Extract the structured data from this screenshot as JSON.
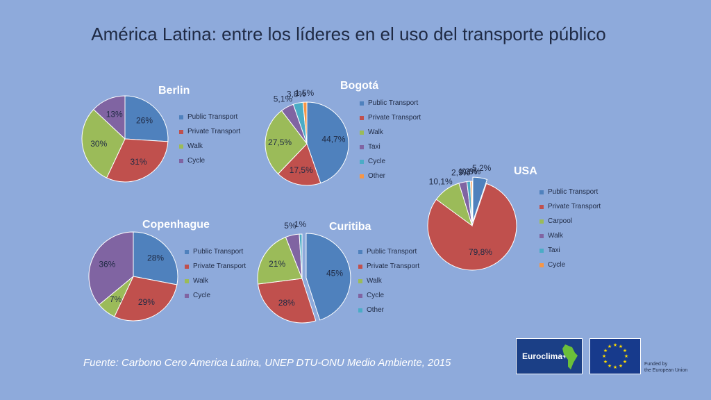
{
  "slide": {
    "title": "América Latina: entre los líderes en el uso del transporte público",
    "source": "Fuente: Carbono Cero America Latina, UNEP DTU-ONU Medio Ambiente, 2015",
    "logos": {
      "euroclima": "Euroclima+",
      "funded_line1": "Funded by",
      "funded_line2": "the European Union"
    }
  },
  "colors": {
    "blue": "#4f81bd",
    "red": "#c0504d",
    "green": "#9bbb59",
    "purple": "#8064a2",
    "cyan": "#4bacc6",
    "orange": "#f79646"
  },
  "chart_data": [
    {
      "type": "pie",
      "title": "Berlin",
      "categories": [
        "Public Transport",
        "Private Transport",
        "Walk",
        "Cycle"
      ],
      "values": [
        26,
        31,
        30,
        13
      ],
      "labels": [
        "26%",
        "31%",
        "30%",
        "13%"
      ],
      "legend": "right"
    },
    {
      "type": "pie",
      "title": "Bogotá",
      "categories": [
        "Public Transport",
        "Private Transport",
        "Walk",
        "Taxi",
        "Cycle",
        "Other"
      ],
      "values": [
        44.7,
        17.5,
        27.5,
        5.1,
        3.8,
        1.5
      ],
      "labels": [
        "44,7%",
        "17,5%",
        "27,5%",
        "5,1%",
        "3,8%",
        "1,5%"
      ],
      "legend": "right"
    },
    {
      "type": "pie",
      "title": "USA",
      "categories": [
        "Public Transport",
        "Private Transport",
        "Carpool",
        "Walk",
        "Taxi",
        "Cycle"
      ],
      "values": [
        5.2,
        79.8,
        10.1,
        2.9,
        1.3,
        0.6
      ],
      "labels": [
        "5,2%",
        "79,8%",
        "10,1%",
        "2,9%",
        "1,3%",
        "0,6%"
      ],
      "legend": "right"
    },
    {
      "type": "pie",
      "title": "Copenhague",
      "categories": [
        "Public Transport",
        "Private Transport",
        "Walk",
        "Cycle"
      ],
      "values": [
        28,
        29,
        7,
        36
      ],
      "labels": [
        "28%",
        "29%",
        "7%",
        "36%"
      ],
      "legend": "right"
    },
    {
      "type": "pie",
      "title": "Curitiba",
      "categories": [
        "Public Transport",
        "Private Transport",
        "Walk",
        "Cycle",
        "Other"
      ],
      "values": [
        45,
        28,
        21,
        5,
        1
      ],
      "labels": [
        "45%",
        "28%",
        "21%",
        "5%",
        "1%"
      ],
      "legend": "right"
    }
  ]
}
